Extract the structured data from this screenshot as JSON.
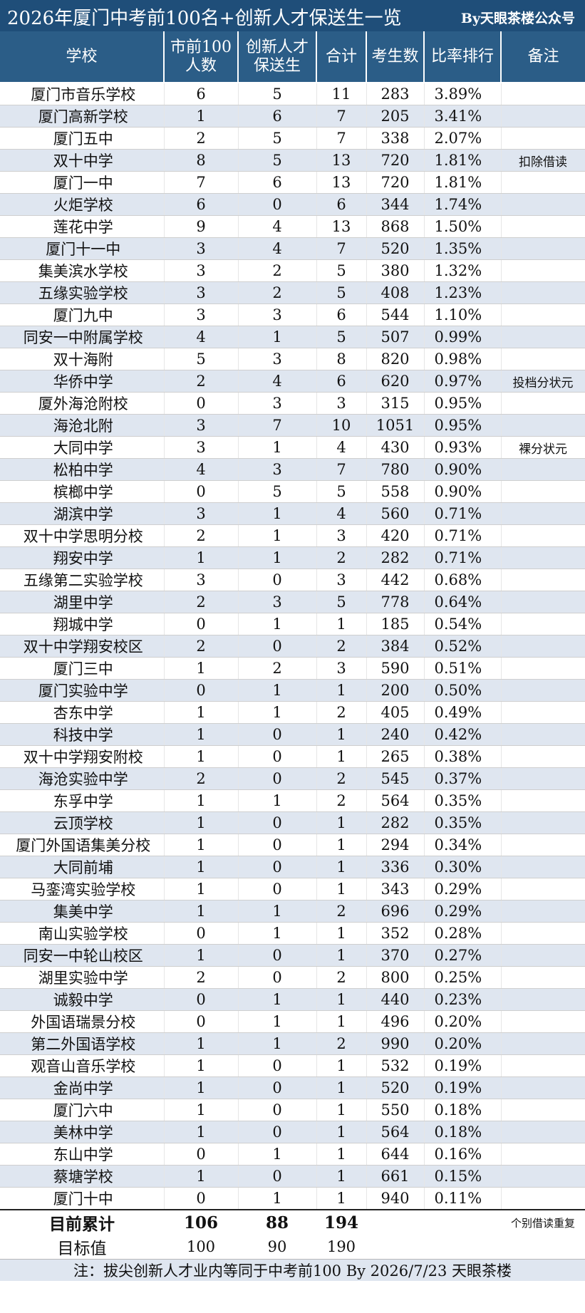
{
  "title": "2026年厦门中考前100名+创新人才保送生一览",
  "byline": "By天眼茶楼公众号",
  "headers": [
    "学校",
    "市前100\n人数",
    "创新人才\n保送生",
    "合计",
    "考生数",
    "比率排行",
    "备注"
  ],
  "rows": [
    [
      "厦门市音乐学校",
      "6",
      "5",
      "11",
      "283",
      "3.89%",
      ""
    ],
    [
      "厦门高新学校",
      "1",
      "6",
      "7",
      "205",
      "3.41%",
      ""
    ],
    [
      "厦门五中",
      "2",
      "5",
      "7",
      "338",
      "2.07%",
      ""
    ],
    [
      "双十中学",
      "8",
      "5",
      "13",
      "720",
      "1.81%",
      "扣除借读"
    ],
    [
      "厦门一中",
      "7",
      "6",
      "13",
      "720",
      "1.81%",
      ""
    ],
    [
      "火炬学校",
      "6",
      "0",
      "6",
      "344",
      "1.74%",
      ""
    ],
    [
      "莲花中学",
      "9",
      "4",
      "13",
      "868",
      "1.50%",
      ""
    ],
    [
      "厦门十一中",
      "3",
      "4",
      "7",
      "520",
      "1.35%",
      ""
    ],
    [
      "集美滨水学校",
      "3",
      "2",
      "5",
      "380",
      "1.32%",
      ""
    ],
    [
      "五缘实验学校",
      "3",
      "2",
      "5",
      "408",
      "1.23%",
      ""
    ],
    [
      "厦门九中",
      "3",
      "3",
      "6",
      "544",
      "1.10%",
      ""
    ],
    [
      "同安一中附属学校",
      "4",
      "1",
      "5",
      "507",
      "0.99%",
      ""
    ],
    [
      "双十海附",
      "5",
      "3",
      "8",
      "820",
      "0.98%",
      ""
    ],
    [
      "华侨中学",
      "2",
      "4",
      "6",
      "620",
      "0.97%",
      "投档分状元"
    ],
    [
      "厦外海沧附校",
      "0",
      "3",
      "3",
      "315",
      "0.95%",
      ""
    ],
    [
      "海沧北附",
      "3",
      "7",
      "10",
      "1051",
      "0.95%",
      ""
    ],
    [
      "大同中学",
      "3",
      "1",
      "4",
      "430",
      "0.93%",
      "裸分状元"
    ],
    [
      "松柏中学",
      "4",
      "3",
      "7",
      "780",
      "0.90%",
      ""
    ],
    [
      "槟榔中学",
      "0",
      "5",
      "5",
      "558",
      "0.90%",
      ""
    ],
    [
      "湖滨中学",
      "3",
      "1",
      "4",
      "560",
      "0.71%",
      ""
    ],
    [
      "双十中学思明分校",
      "2",
      "1",
      "3",
      "420",
      "0.71%",
      ""
    ],
    [
      "翔安中学",
      "1",
      "1",
      "2",
      "282",
      "0.71%",
      ""
    ],
    [
      "五缘第二实验学校",
      "3",
      "0",
      "3",
      "442",
      "0.68%",
      ""
    ],
    [
      "湖里中学",
      "2",
      "3",
      "5",
      "778",
      "0.64%",
      ""
    ],
    [
      "翔城中学",
      "0",
      "1",
      "1",
      "185",
      "0.54%",
      ""
    ],
    [
      "双十中学翔安校区",
      "2",
      "0",
      "2",
      "384",
      "0.52%",
      ""
    ],
    [
      "厦门三中",
      "1",
      "2",
      "3",
      "590",
      "0.51%",
      ""
    ],
    [
      "厦门实验中学",
      "0",
      "1",
      "1",
      "200",
      "0.50%",
      ""
    ],
    [
      "杏东中学",
      "1",
      "1",
      "2",
      "405",
      "0.49%",
      ""
    ],
    [
      "科技中学",
      "1",
      "0",
      "1",
      "240",
      "0.42%",
      ""
    ],
    [
      "双十中学翔安附校",
      "1",
      "0",
      "1",
      "265",
      "0.38%",
      ""
    ],
    [
      "海沧实验中学",
      "2",
      "0",
      "2",
      "545",
      "0.37%",
      ""
    ],
    [
      "东孚中学",
      "1",
      "1",
      "2",
      "564",
      "0.35%",
      ""
    ],
    [
      "云顶学校",
      "1",
      "0",
      "1",
      "282",
      "0.35%",
      ""
    ],
    [
      "厦门外国语集美分校",
      "1",
      "0",
      "1",
      "294",
      "0.34%",
      ""
    ],
    [
      "大同前埔",
      "1",
      "0",
      "1",
      "336",
      "0.30%",
      ""
    ],
    [
      "马銮湾实验学校",
      "1",
      "0",
      "1",
      "343",
      "0.29%",
      ""
    ],
    [
      "集美中学",
      "1",
      "1",
      "2",
      "696",
      "0.29%",
      ""
    ],
    [
      "南山实验学校",
      "0",
      "1",
      "1",
      "352",
      "0.28%",
      ""
    ],
    [
      "同安一中轮山校区",
      "1",
      "0",
      "1",
      "370",
      "0.27%",
      ""
    ],
    [
      "湖里实验中学",
      "2",
      "0",
      "2",
      "800",
      "0.25%",
      ""
    ],
    [
      "诚毅中学",
      "0",
      "1",
      "1",
      "440",
      "0.23%",
      ""
    ],
    [
      "外国语瑞景分校",
      "0",
      "1",
      "1",
      "496",
      "0.20%",
      ""
    ],
    [
      "第二外国语学校",
      "1",
      "1",
      "2",
      "990",
      "0.20%",
      ""
    ],
    [
      "观音山音乐学校",
      "1",
      "0",
      "1",
      "532",
      "0.19%",
      ""
    ],
    [
      "金尚中学",
      "1",
      "0",
      "1",
      "520",
      "0.19%",
      ""
    ],
    [
      "厦门六中",
      "1",
      "0",
      "1",
      "550",
      "0.18%",
      ""
    ],
    [
      "美林中学",
      "1",
      "0",
      "1",
      "564",
      "0.18%",
      ""
    ],
    [
      "东山中学",
      "0",
      "1",
      "1",
      "644",
      "0.16%",
      ""
    ],
    [
      "蔡塘学校",
      "1",
      "0",
      "1",
      "661",
      "0.15%",
      ""
    ],
    [
      "厦门十中",
      "0",
      "1",
      "1",
      "940",
      "0.11%",
      ""
    ]
  ],
  "summary": {
    "label": "目前累计",
    "top100": "106",
    "talent": "88",
    "total": "194",
    "note": "个别借读重复"
  },
  "target": {
    "label": "目标值",
    "top100": "100",
    "talent": "90",
    "total": "190"
  },
  "footer": "注：拔尖创新人才业内等同于中考前100   By 2026/7/23 天眼茶楼"
}
